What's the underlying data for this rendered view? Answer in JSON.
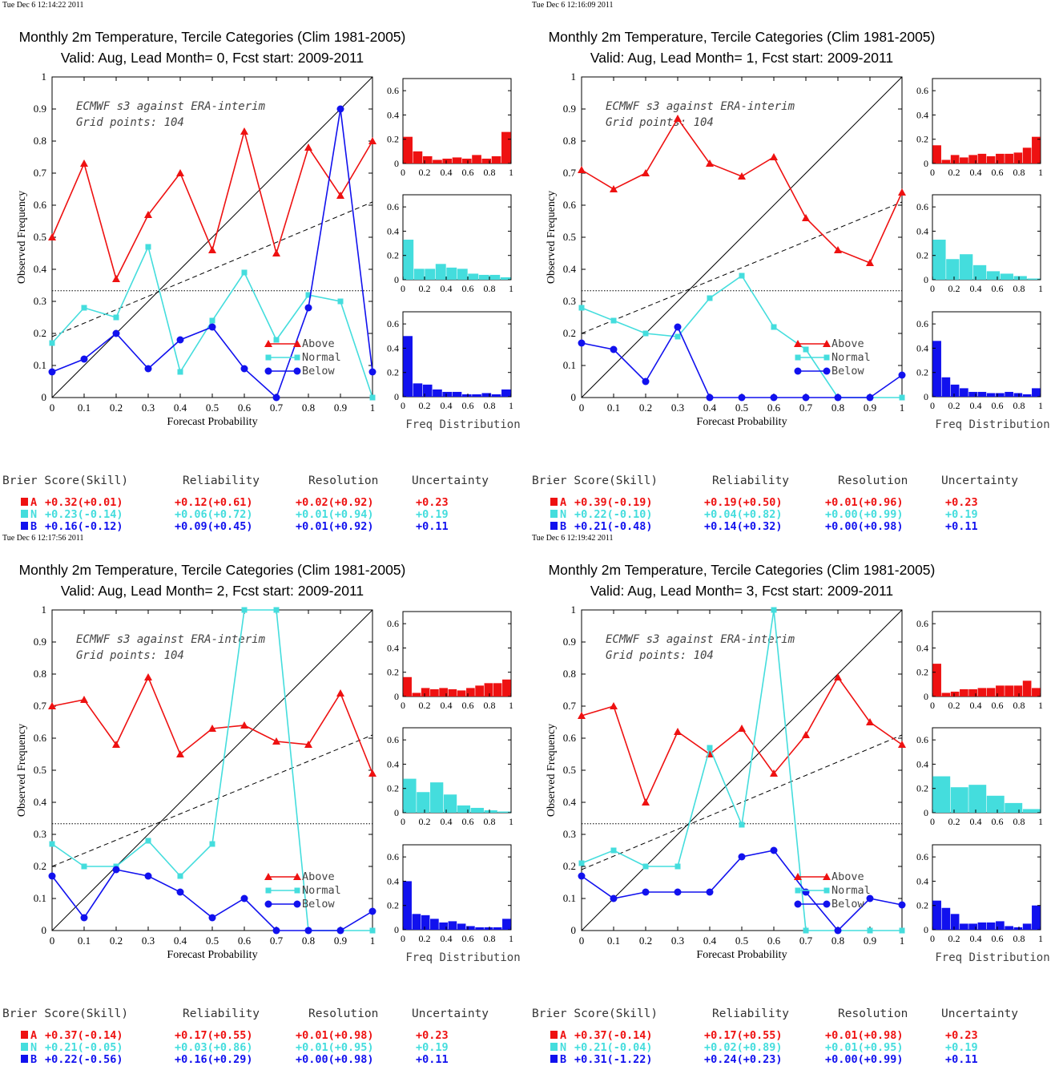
{
  "colors": {
    "above": "#ee1111",
    "normal": "#44dddd",
    "below": "#1111ee",
    "text": "#222222"
  },
  "common": {
    "xlabel": "Forecast Probability",
    "ylabel": "Observed Frequency",
    "annotation_line1": "ECMWF s3 against ERA-interim",
    "annotation_line2": "Grid points:  104",
    "hist_label": "Freq Distribution",
    "legend": [
      "Above",
      "Normal",
      "Below"
    ],
    "score_headers": [
      "Brier Score(Skill)",
      "Reliability",
      "Resolution",
      "Uncertainty"
    ],
    "score_row_letters": [
      "A",
      "N",
      "B"
    ],
    "rel_xticks": [
      "0",
      "0.1",
      "0.2",
      "0.3",
      "0.4",
      "0.5",
      "0.6",
      "0.7",
      "0.8",
      "0.9",
      "1"
    ],
    "rel_yticks": [
      "0",
      "0.1",
      "0.2",
      "0.3",
      "0.4",
      "0.5",
      "0.6",
      "0.7",
      "0.8",
      "0.9",
      "1"
    ],
    "hist_xticks": [
      "0",
      "0.2",
      "0.4",
      "0.6",
      "0.8",
      "1"
    ],
    "hist_yticks": [
      "0",
      "0.2",
      "0.4",
      "0.6"
    ],
    "xlim": [
      0,
      1
    ],
    "ylim": [
      0,
      1
    ],
    "hist_ylim": [
      0,
      0.7
    ],
    "climatology_line": 0.333
  },
  "chart_data": [
    {
      "type": "line",
      "timestamp": "Tue Dec  6 12:14:22 2011",
      "title": "Monthly 2m Temperature, Tercile Categories (Clim 1981-2005)",
      "subtitle": "Valid: Aug, Lead Month= 0, Fcst start: 2009-2011",
      "x": [
        0,
        0.1,
        0.2,
        0.3,
        0.4,
        0.5,
        0.6,
        0.7,
        0.8,
        0.9,
        1.0
      ],
      "series": [
        {
          "name": "Above",
          "values": [
            0.5,
            0.73,
            0.37,
            0.57,
            0.7,
            0.46,
            0.83,
            0.45,
            0.78,
            0.63,
            0.8
          ]
        },
        {
          "name": "Normal",
          "values": [
            0.17,
            0.28,
            0.25,
            0.47,
            0.08,
            0.24,
            0.39,
            0.18,
            0.32,
            0.3,
            0.0
          ]
        },
        {
          "name": "Below",
          "values": [
            0.08,
            0.12,
            0.2,
            0.09,
            0.18,
            0.22,
            0.09,
            0.0,
            0.28,
            0.9,
            0.08
          ]
        }
      ],
      "regression": [
        0.19,
        0.61
      ],
      "histograms": {
        "above": [
          0.22,
          0.1,
          0.06,
          0.03,
          0.04,
          0.05,
          0.04,
          0.07,
          0.04,
          0.06,
          0.26
        ],
        "normal": [
          0.33,
          0.09,
          0.09,
          0.13,
          0.1,
          0.09,
          0.05,
          0.04,
          0.04,
          0.02
        ],
        "below": [
          0.5,
          0.11,
          0.1,
          0.06,
          0.04,
          0.04,
          0.02,
          0.02,
          0.03,
          0.02,
          0.06
        ]
      },
      "scores": [
        [
          "+0.32(+0.01)",
          "+0.12(+0.61)",
          "+0.02(+0.92)",
          "+0.23"
        ],
        [
          "+0.23(-0.14)",
          "+0.06(+0.72)",
          "+0.01(+0.94)",
          "+0.19"
        ],
        [
          "+0.16(-0.12)",
          "+0.09(+0.45)",
          "+0.01(+0.92)",
          "+0.11"
        ]
      ]
    },
    {
      "type": "line",
      "timestamp": "Tue Dec  6 12:16:09 2011",
      "title": "Monthly 2m Temperature, Tercile Categories (Clim 1981-2005)",
      "subtitle": "Valid: Aug, Lead Month= 1, Fcst start: 2009-2011",
      "x": [
        0,
        0.1,
        0.2,
        0.3,
        0.4,
        0.5,
        0.6,
        0.7,
        0.8,
        0.9,
        1.0
      ],
      "series": [
        {
          "name": "Above",
          "values": [
            0.71,
            0.65,
            0.7,
            0.87,
            0.73,
            0.69,
            0.75,
            0.56,
            0.46,
            0.42,
            0.64
          ]
        },
        {
          "name": "Normal",
          "values": [
            0.28,
            0.24,
            0.2,
            0.19,
            0.31,
            0.38,
            0.22,
            0.15,
            0.0,
            0.0,
            0.0
          ]
        },
        {
          "name": "Below",
          "values": [
            0.17,
            0.15,
            0.05,
            0.22,
            0.0,
            0.0,
            0.0,
            0.0,
            0.0,
            0.0,
            0.07
          ]
        }
      ],
      "regression": [
        0.2,
        0.61
      ],
      "histograms": {
        "above": [
          0.15,
          0.03,
          0.07,
          0.05,
          0.07,
          0.08,
          0.06,
          0.08,
          0.08,
          0.09,
          0.13,
          0.22
        ],
        "normal": [
          0.33,
          0.17,
          0.21,
          0.12,
          0.07,
          0.05,
          0.03,
          0.01
        ],
        "below": [
          0.46,
          0.16,
          0.1,
          0.07,
          0.04,
          0.04,
          0.03,
          0.03,
          0.04,
          0.03,
          0.02,
          0.07
        ]
      },
      "scores": [
        [
          "+0.39(-0.19)",
          "+0.19(+0.50)",
          "+0.01(+0.96)",
          "+0.23"
        ],
        [
          "+0.22(-0.10)",
          "+0.04(+0.82)",
          "+0.00(+0.99)",
          "+0.19"
        ],
        [
          "+0.21(-0.48)",
          "+0.14(+0.32)",
          "+0.00(+0.98)",
          "+0.11"
        ]
      ]
    },
    {
      "type": "line",
      "timestamp": "Tue Dec  6 12:17:56 2011",
      "title": "Monthly 2m Temperature, Tercile Categories (Clim 1981-2005)",
      "subtitle": "Valid: Aug, Lead Month= 2, Fcst start: 2009-2011",
      "x": [
        0,
        0.1,
        0.2,
        0.3,
        0.4,
        0.5,
        0.6,
        0.7,
        0.8,
        0.9,
        1.0
      ],
      "series": [
        {
          "name": "Above",
          "values": [
            0.7,
            0.72,
            0.58,
            0.79,
            0.55,
            0.63,
            0.64,
            0.59,
            0.58,
            0.74,
            0.49
          ]
        },
        {
          "name": "Normal",
          "values": [
            0.27,
            0.2,
            0.2,
            0.28,
            0.17,
            0.27,
            1.0,
            1.0,
            0.0,
            0.0,
            0.0
          ]
        },
        {
          "name": "Below",
          "values": [
            0.17,
            0.04,
            0.19,
            0.17,
            0.12,
            0.04,
            0.1,
            0.0,
            0.0,
            0.0,
            0.06
          ]
        }
      ],
      "regression": [
        0.2,
        0.61
      ],
      "histograms": {
        "above": [
          0.16,
          0.03,
          0.07,
          0.06,
          0.07,
          0.06,
          0.05,
          0.07,
          0.09,
          0.11,
          0.11,
          0.14
        ],
        "normal": [
          0.28,
          0.17,
          0.25,
          0.15,
          0.06,
          0.04,
          0.02,
          0.01
        ],
        "below": [
          0.4,
          0.13,
          0.12,
          0.09,
          0.06,
          0.07,
          0.05,
          0.03,
          0.02,
          0.02,
          0.02,
          0.09
        ]
      },
      "scores": [
        [
          "+0.37(-0.14)",
          "+0.17(+0.55)",
          "+0.01(+0.98)",
          "+0.23"
        ],
        [
          "+0.21(-0.05)",
          "+0.03(+0.86)",
          "+0.01(+0.95)",
          "+0.19"
        ],
        [
          "+0.22(-0.56)",
          "+0.16(+0.29)",
          "+0.00(+0.98)",
          "+0.11"
        ]
      ]
    },
    {
      "type": "line",
      "timestamp": "Tue Dec  6 12:19:42 2011",
      "title": "Monthly 2m Temperature, Tercile Categories (Clim 1981-2005)",
      "subtitle": "Valid: Aug, Lead Month= 3, Fcst start: 2009-2011",
      "x": [
        0,
        0.1,
        0.2,
        0.3,
        0.4,
        0.5,
        0.6,
        0.7,
        0.8,
        0.9,
        1.0
      ],
      "series": [
        {
          "name": "Above",
          "values": [
            0.67,
            0.7,
            0.4,
            0.62,
            0.55,
            0.63,
            0.49,
            0.61,
            0.79,
            0.65,
            0.58
          ]
        },
        {
          "name": "Normal",
          "values": [
            0.21,
            0.25,
            0.2,
            0.2,
            0.57,
            0.33,
            1.0,
            0.0,
            0.0,
            0.0,
            0.0
          ]
        },
        {
          "name": "Below",
          "values": [
            0.17,
            0.1,
            0.12,
            0.12,
            0.12,
            0.23,
            0.25,
            0.12,
            0.0,
            0.1,
            0.08
          ]
        }
      ],
      "regression": [
        0.19,
        0.61
      ],
      "histograms": {
        "above": [
          0.27,
          0.03,
          0.04,
          0.06,
          0.06,
          0.07,
          0.07,
          0.09,
          0.09,
          0.09,
          0.13,
          0.07
        ],
        "normal": [
          0.3,
          0.21,
          0.23,
          0.14,
          0.08,
          0.03
        ],
        "below": [
          0.24,
          0.18,
          0.13,
          0.05,
          0.05,
          0.06,
          0.06,
          0.07,
          0.03,
          0.02,
          0.05,
          0.2
        ]
      },
      "scores": [
        [
          "+0.37(-0.14)",
          "+0.17(+0.55)",
          "+0.01(+0.98)",
          "+0.23"
        ],
        [
          "+0.21(-0.04)",
          "+0.02(+0.89)",
          "+0.01(+0.95)",
          "+0.19"
        ],
        [
          "+0.31(-1.22)",
          "+0.24(+0.23)",
          "+0.00(+0.99)",
          "+0.11"
        ]
      ]
    }
  ]
}
